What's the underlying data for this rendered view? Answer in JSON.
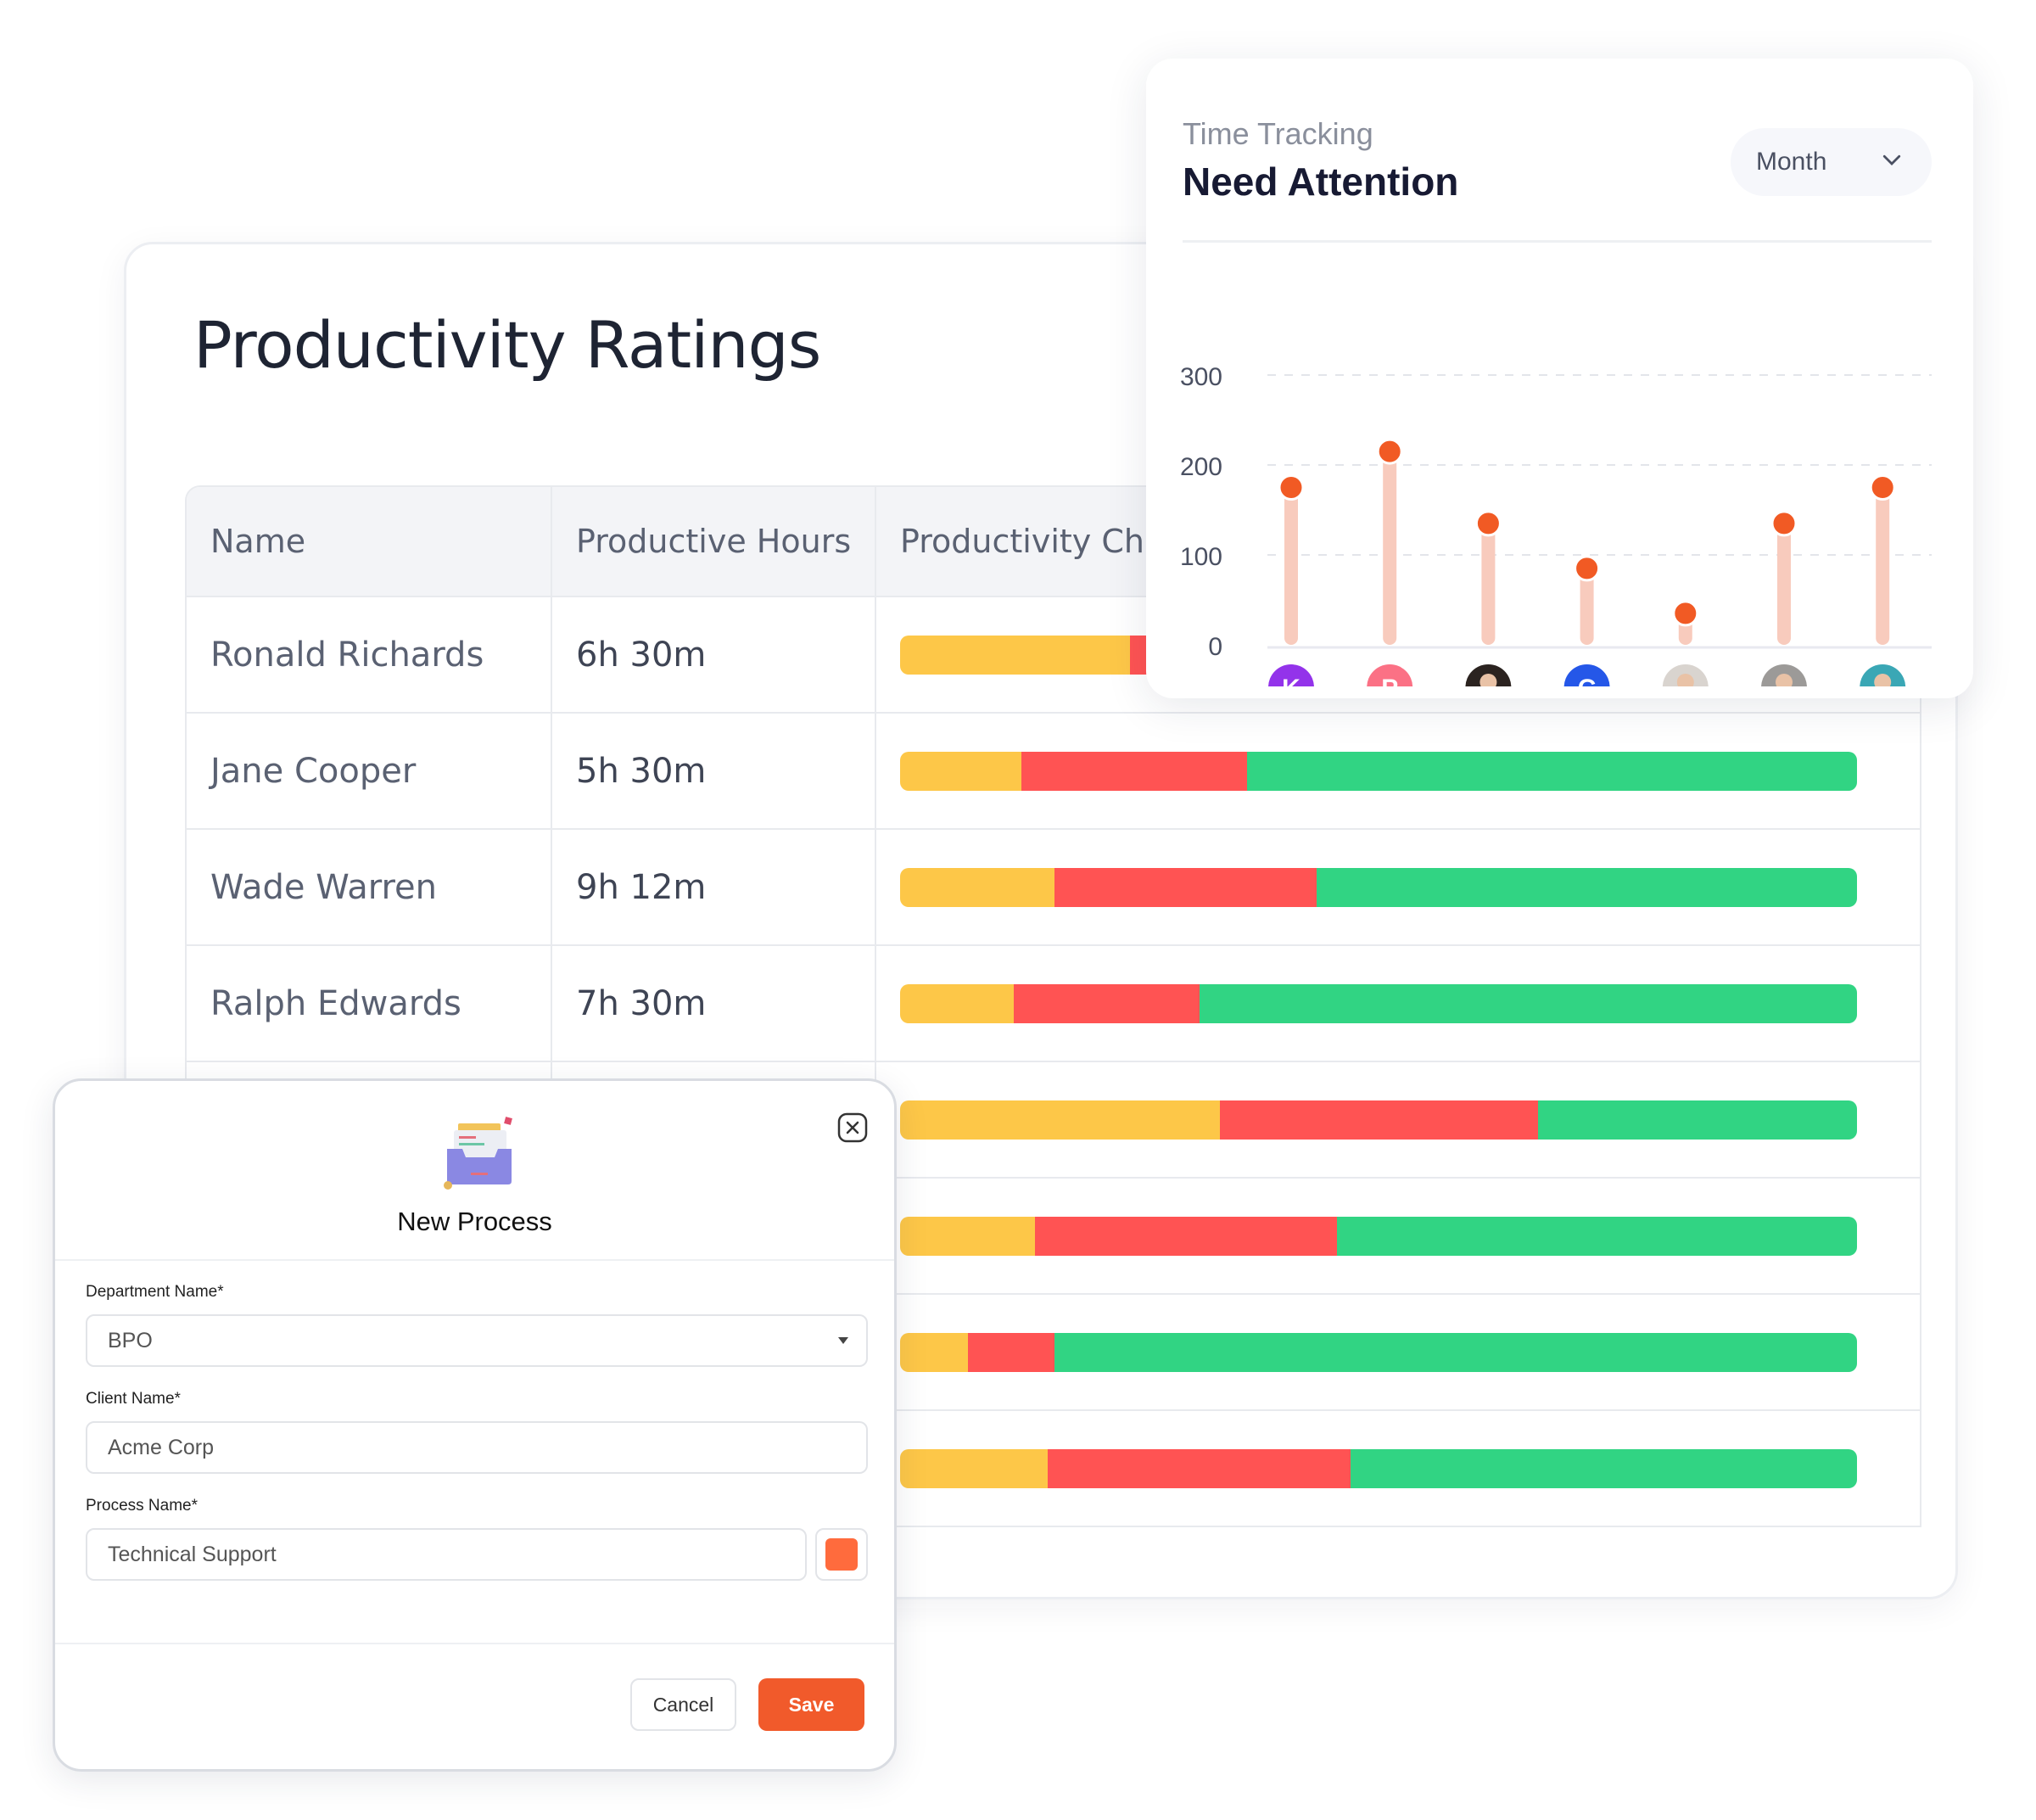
{
  "productivity": {
    "title": "Productivity Ratings",
    "columns": [
      "Name",
      "Productive Hours",
      "Productivity Chart"
    ],
    "colors": {
      "idle": "#fdc748",
      "unproductive": "#ff5353",
      "productive": "#31d483"
    },
    "rows": [
      {
        "name": "Ronald Richards",
        "hours": "6h 30m",
        "segments": [
          24,
          22,
          54
        ]
      },
      {
        "name": "Jane Cooper",
        "hours": "5h 30m",
        "segments": [
          12.7,
          23.6,
          63.7
        ]
      },
      {
        "name": "Wade Warren",
        "hours": "9h 12m",
        "segments": [
          16.1,
          27.4,
          56.5
        ]
      },
      {
        "name": "Ralph Edwards",
        "hours": "7h 30m",
        "segments": [
          11.9,
          19.4,
          68.7
        ]
      },
      {
        "name": "",
        "hours": "",
        "segments": [
          33.4,
          33.3,
          33.3
        ]
      },
      {
        "name": "",
        "hours": "",
        "segments": [
          14.1,
          31.6,
          54.3
        ]
      },
      {
        "name": "",
        "hours": "",
        "segments": [
          7.1,
          9.0,
          83.9
        ]
      },
      {
        "name": "",
        "hours": "",
        "segments": [
          15.4,
          31.7,
          52.9
        ]
      }
    ]
  },
  "time_tracking": {
    "subtitle": "Time Tracking",
    "title": "Need Attention",
    "period": "Month",
    "accent": "#f15a24",
    "stem_color": "#f8cbbd"
  },
  "chart_data": {
    "type": "lollipop",
    "ylim": [
      0,
      300
    ],
    "yticks": [
      "300",
      "200",
      "100",
      "0"
    ],
    "grid": true,
    "categories": [
      {
        "avatar": "K",
        "type": "initial",
        "color": "#9333ea"
      },
      {
        "avatar": "P",
        "type": "initial",
        "color": "#fb7185"
      },
      {
        "avatar": "",
        "type": "photo",
        "color": "#2b2320"
      },
      {
        "avatar": "C",
        "type": "initial",
        "color": "#2557e8"
      },
      {
        "avatar": "",
        "type": "photo",
        "color": "#d9d4cf"
      },
      {
        "avatar": "",
        "type": "photo",
        "color": "#9c9a98"
      },
      {
        "avatar": "",
        "type": "photo",
        "color": "#3aa7b5"
      }
    ],
    "values": [
      175,
      215,
      135,
      85,
      35,
      135,
      175
    ]
  },
  "modal": {
    "title": "New Process",
    "department_label": "Department Name*",
    "department_value": "BPO",
    "client_label": "Client Name*",
    "client_value": "Acme Corp",
    "process_label": "Process Name*",
    "process_value": "Technical Support",
    "process_color": "#ff6b3d",
    "cancel": "Cancel",
    "save": "Save",
    "save_color": "#f15a2b"
  }
}
